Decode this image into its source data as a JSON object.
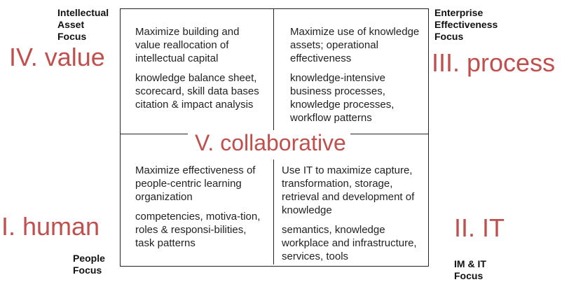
{
  "corners": {
    "top_left": [
      "Intellectual",
      "Asset",
      "Focus"
    ],
    "top_right": [
      "Enterprise",
      "Effectiveness",
      "Focus"
    ],
    "bottom_left": [
      "People",
      "Focus"
    ],
    "bottom_right": [
      "IM & IT",
      "Focus"
    ]
  },
  "labels": {
    "value": "IV. value",
    "process": "III. process",
    "collaborative": "V. collaborative",
    "human": "I. human",
    "it": "II. IT"
  },
  "quadrants": {
    "top_left": {
      "goal": "Maximize building and value reallocation of intellectual capital",
      "items": "knowledge balance sheet, scorecard, skill data bases citation & impact analysis"
    },
    "top_right": {
      "goal": "Maximize use of knowledge assets; operational effectiveness",
      "items": "knowledge-intensive business processes, knowledge processes, workflow patterns"
    },
    "bottom_left": {
      "goal": "Maximize effectiveness of people-centric learning organization",
      "items": "competencies, motiva-tion, roles & responsi-bilities, task patterns"
    },
    "bottom_right": {
      "goal": "Use IT to maximize capture, transformation, storage, retrieval and development of knowledge",
      "items": "semantics, knowledge workplace and infrastructure, services, tools"
    }
  },
  "colors": {
    "accent": "#c0504d",
    "line": "#222222"
  }
}
